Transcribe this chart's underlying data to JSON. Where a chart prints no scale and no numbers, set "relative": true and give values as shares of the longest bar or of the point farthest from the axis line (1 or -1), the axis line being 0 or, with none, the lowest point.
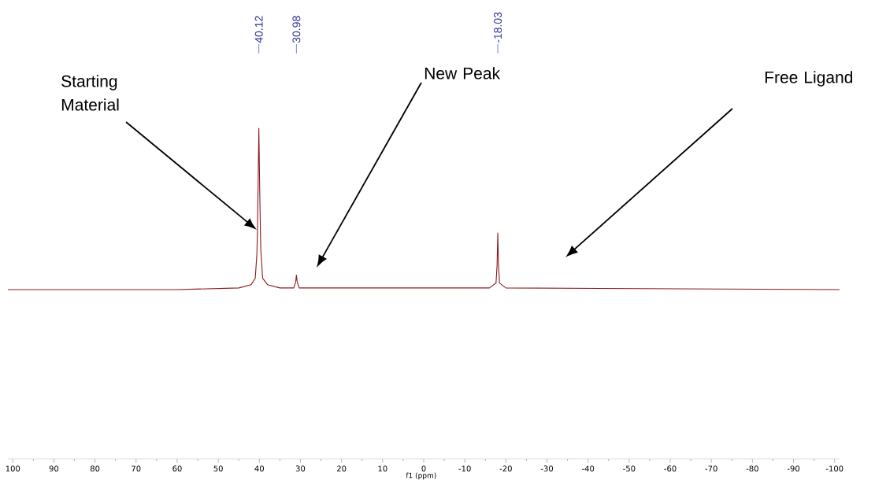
{
  "chart_data": {
    "type": "line",
    "relative": true,
    "xlabel": "f1 (ppm)",
    "xlim": [
      101.2,
      -101.2
    ],
    "xticks": [
      100,
      90,
      80,
      70,
      60,
      50,
      40,
      30,
      20,
      10,
      0,
      -10,
      -20,
      -30,
      -40,
      -50,
      -60,
      -70,
      -80,
      -90,
      -100
    ],
    "marker": "none",
    "line_style": "solid",
    "x": [
      101.2,
      60,
      45,
      42,
      41,
      40.6,
      40.45,
      40.3,
      40.12,
      39.9,
      39.65,
      39.2,
      38,
      35,
      31.6,
      31.15,
      30.98,
      30.8,
      30.3,
      -16,
      -17.6,
      -17.85,
      -18.03,
      -18.2,
      -18.45,
      -20,
      -101.2
    ],
    "series": [
      {
        "color": "#8b1a1a",
        "values": [
          0.512,
          0.512,
          0.517,
          0.527,
          0.546,
          0.619,
          0.693,
          0.829,
          1,
          0.805,
          0.634,
          0.546,
          0.527,
          0.517,
          0.517,
          0.536,
          0.556,
          0.536,
          0.517,
          0.517,
          0.532,
          0.585,
          0.683,
          0.585,
          0.532,
          0.517,
          0.512
        ]
      }
    ],
    "annotations": [
      {
        "text": "40.12",
        "x": 40.12
      },
      {
        "text": "30.98",
        "x": 30.98
      },
      {
        "text": "-18.03",
        "x": -18.03
      },
      "Starting Material",
      "New Peak",
      "Free Ligand"
    ]
  }
}
